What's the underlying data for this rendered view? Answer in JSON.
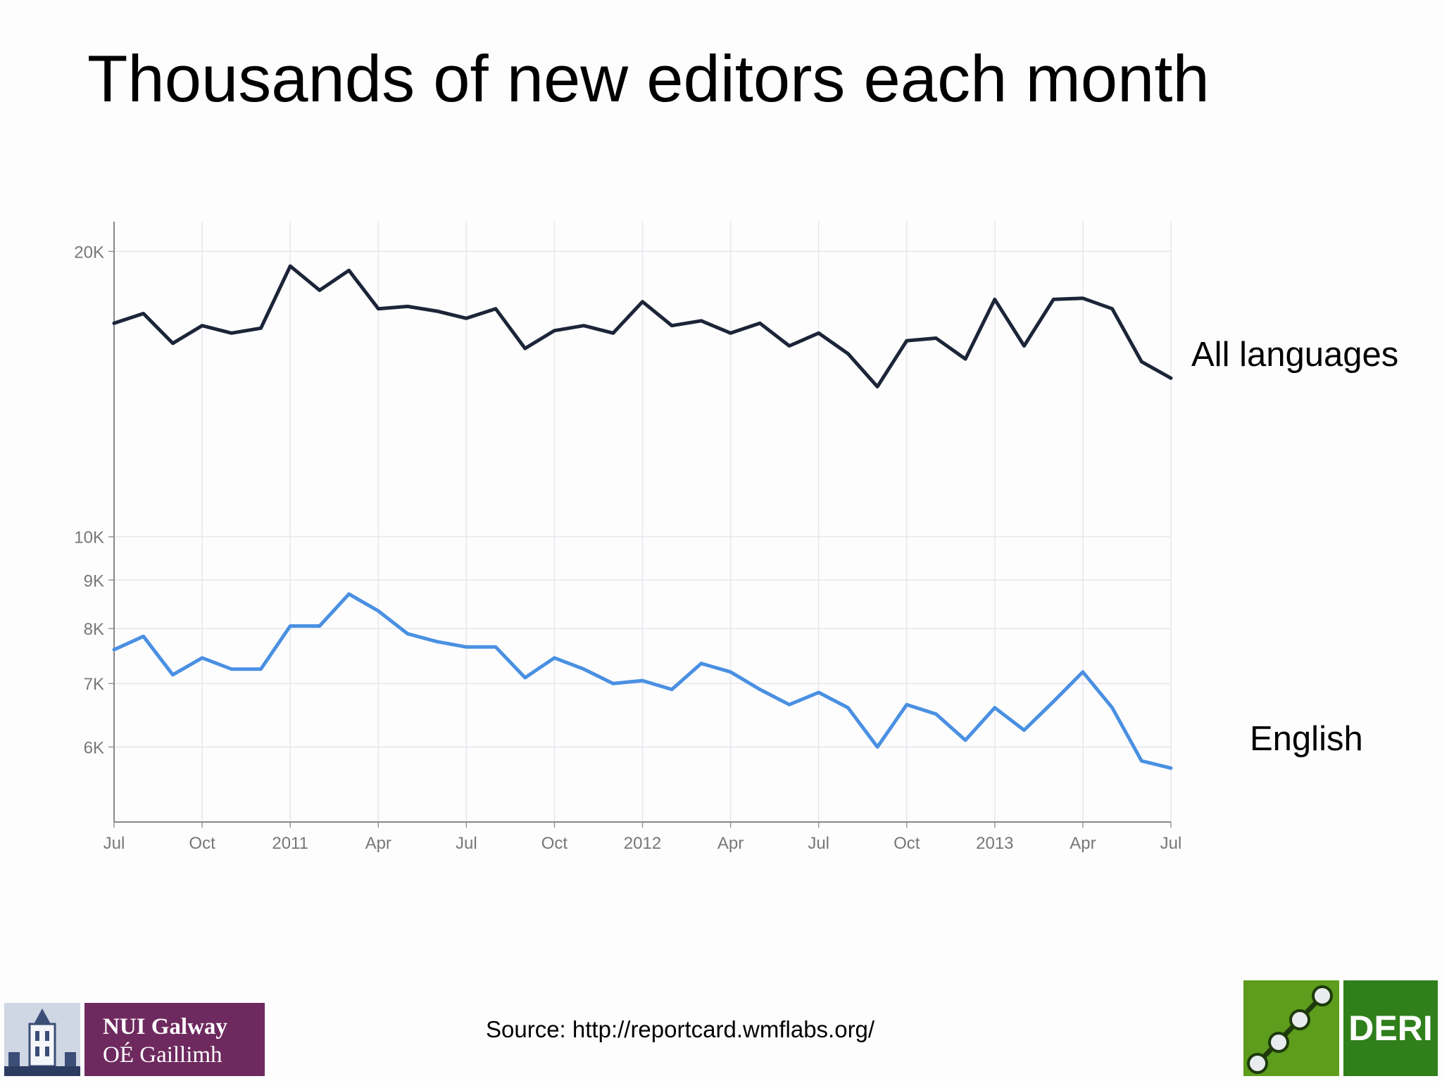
{
  "slide": {
    "title": "Thousands of new editors each month",
    "source": "Source: http://reportcard.wmflabs.org/"
  },
  "logos": {
    "nui_line1": "NUI Galway",
    "nui_line2": "OÉ Gaillimh",
    "deri": "DERI"
  },
  "colors": {
    "all_languages": "#1c2538",
    "english": "#4a90e2",
    "nui_purple": "#6e2a5f",
    "deri_green": "#2f7f1b"
  },
  "chart_data": {
    "type": "line",
    "yscale": "log",
    "ylim": [
      5000,
      21500
    ],
    "y_ticks": [
      6000,
      7000,
      8000,
      9000,
      10000,
      20000
    ],
    "y_tick_labels": [
      "6K",
      "7K",
      "8K",
      "9K",
      "10K",
      "20K"
    ],
    "x": [
      "2010-07",
      "2010-08",
      "2010-09",
      "2010-10",
      "2010-11",
      "2010-12",
      "2011-01",
      "2011-02",
      "2011-03",
      "2011-04",
      "2011-05",
      "2011-06",
      "2011-07",
      "2011-08",
      "2011-09",
      "2011-10",
      "2011-11",
      "2011-12",
      "2012-01",
      "2012-02",
      "2012-03",
      "2012-04",
      "2012-05",
      "2012-06",
      "2012-07",
      "2012-08",
      "2012-09",
      "2012-10",
      "2012-11",
      "2012-12",
      "2013-01",
      "2013-02",
      "2013-03",
      "2013-04",
      "2013-05",
      "2013-06",
      "2013-07"
    ],
    "x_ticks": [
      "2010-07",
      "2010-10",
      "2011-01",
      "2011-04",
      "2011-07",
      "2011-10",
      "2012-01",
      "2012-04",
      "2012-07",
      "2012-10",
      "2013-01",
      "2013-04",
      "2013-07"
    ],
    "x_tick_labels": [
      "Jul",
      "Oct",
      "2011",
      "Apr",
      "Jul",
      "Oct",
      "2012",
      "Apr",
      "Jul",
      "Oct",
      "2013",
      "Apr",
      "Jul"
    ],
    "grid": true,
    "series": [
      {
        "name": "All languages",
        "values": [
          16800,
          17200,
          16000,
          16700,
          16400,
          16600,
          19300,
          18200,
          19100,
          17400,
          17500,
          17300,
          17000,
          17400,
          15800,
          16500,
          16700,
          16400,
          17700,
          16700,
          16900,
          16400,
          16800,
          15900,
          16400,
          15600,
          14400,
          16100,
          16200,
          15400,
          17800,
          15900,
          17800,
          17850,
          17400,
          15300,
          14700
        ]
      },
      {
        "name": "English",
        "values": [
          7600,
          7850,
          7150,
          7450,
          7250,
          7250,
          8050,
          8050,
          8700,
          8350,
          7900,
          7750,
          7650,
          7650,
          7100,
          7450,
          7250,
          7000,
          7050,
          6900,
          7350,
          7200,
          6900,
          6650,
          6850,
          6600,
          6000,
          6650,
          6500,
          6100,
          6600,
          6250,
          6700,
          7200,
          6600,
          5800,
          5700
        ]
      }
    ]
  }
}
